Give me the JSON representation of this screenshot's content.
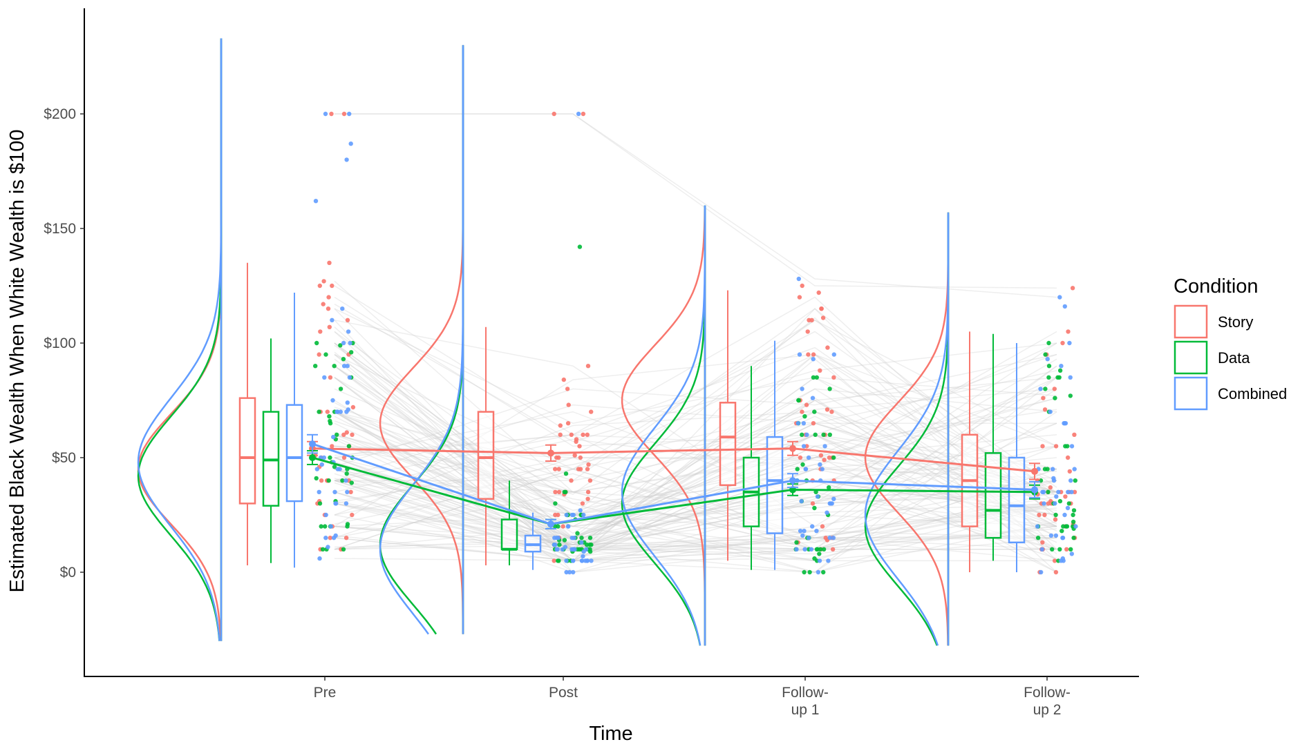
{
  "chart_data": {
    "type": "raincloud",
    "xlabel": "Time",
    "ylabel": "Estimated Black Wealth When White Wealth is $100",
    "ylim": [
      -40,
      240
    ],
    "y_ticks": [
      {
        "value": 0,
        "label": "$0"
      },
      {
        "value": 50,
        "label": "$50"
      },
      {
        "value": 100,
        "label": "$100"
      },
      {
        "value": 150,
        "label": "$150"
      },
      {
        "value": 200,
        "label": "$200"
      }
    ],
    "categories": [
      {
        "key": "pre",
        "line1": "Pre",
        "line2": ""
      },
      {
        "key": "post",
        "line1": "Post",
        "line2": ""
      },
      {
        "key": "f1",
        "line1": "Follow-",
        "line2": "up 1"
      },
      {
        "key": "f2",
        "line1": "Follow-",
        "line2": "up 2"
      }
    ],
    "legend": {
      "title": "Condition",
      "position": "right",
      "items": [
        {
          "label": "Story",
          "color": "#F8766D"
        },
        {
          "label": "Data",
          "color": "#00BA38"
        },
        {
          "label": "Combined",
          "color": "#619CFF"
        }
      ]
    },
    "series": [
      {
        "name": "Story",
        "color": "#F8766D",
        "means": [
          54,
          52,
          54,
          44
        ],
        "errors": [
          3,
          3.5,
          3,
          3.5
        ],
        "boxes": [
          {
            "min": 3,
            "q1": 30,
            "median": 50,
            "q3": 76,
            "max": 135
          },
          {
            "min": 3,
            "q1": 32,
            "median": 50,
            "q3": 70,
            "max": 107
          },
          {
            "min": 5,
            "q1": 38,
            "median": 59,
            "q3": 74,
            "max": 123
          },
          {
            "min": 0,
            "q1": 20,
            "median": 40,
            "q3": 60,
            "max": 105
          }
        ],
        "density_peaks": [
          45,
          65,
          75,
          50
        ],
        "density_range": [
          [
            -30,
            233
          ],
          [
            -27,
            230
          ],
          [
            -32,
            160
          ],
          [
            -32,
            157
          ]
        ],
        "outliers": [
          [
            200,
            200,
            135,
            125
          ],
          [
            200,
            200
          ],
          [
            125,
            122
          ],
          [
            124
          ]
        ]
      },
      {
        "name": "Data",
        "color": "#00BA38",
        "means": [
          50,
          21,
          36,
          35
        ],
        "errors": [
          3,
          2,
          2.5,
          3
        ],
        "boxes": [
          {
            "min": 4,
            "q1": 29,
            "median": 49,
            "q3": 70,
            "max": 102
          },
          {
            "min": 3,
            "q1": 10,
            "median": 10,
            "q3": 23,
            "max": 40
          },
          {
            "min": 1,
            "q1": 20,
            "median": 35,
            "q3": 50,
            "max": 90
          },
          {
            "min": 5,
            "q1": 15,
            "median": 27,
            "q3": 52,
            "max": 104
          }
        ],
        "density_peaks": [
          42,
          12,
          30,
          20
        ],
        "density_range": [
          [
            -30,
            233
          ],
          [
            -27,
            230
          ],
          [
            -32,
            160
          ],
          [
            -32,
            157
          ]
        ],
        "outliers": [
          [],
          [
            142
          ],
          [],
          []
        ]
      },
      {
        "name": "Combined",
        "color": "#619CFF",
        "means": [
          56,
          21,
          40,
          36
        ],
        "errors": [
          4,
          2,
          3,
          3.5
        ],
        "boxes": [
          {
            "min": 2,
            "q1": 31,
            "median": 50,
            "q3": 73,
            "max": 122
          },
          {
            "min": 1,
            "q1": 9,
            "median": 12,
            "q3": 16,
            "max": 26
          },
          {
            "min": 1,
            "q1": 17,
            "median": 40,
            "q3": 59,
            "max": 101
          },
          {
            "min": 0,
            "q1": 13,
            "median": 29,
            "q3": 50,
            "max": 100
          }
        ],
        "density_peaks": [
          48,
          10,
          35,
          25
        ],
        "density_range": [
          [
            -30,
            233
          ],
          [
            -27,
            230
          ],
          [
            -32,
            160
          ],
          [
            -32,
            157
          ]
        ],
        "outliers": [
          [
            200,
            200,
            187,
            180,
            162
          ],
          [
            200
          ],
          [
            128
          ],
          [
            120,
            116
          ]
        ]
      }
    ]
  }
}
